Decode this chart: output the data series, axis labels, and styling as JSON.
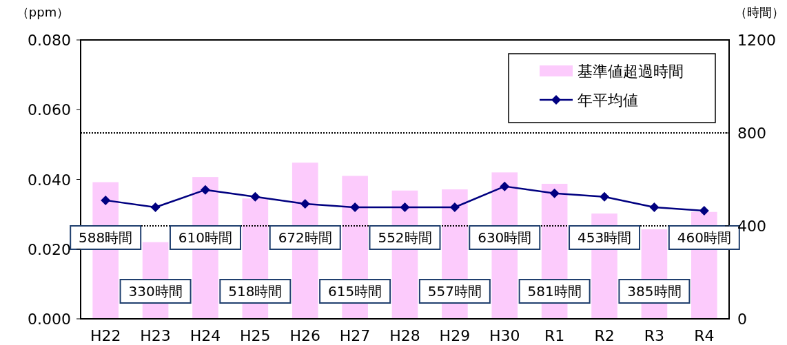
{
  "chart_data": {
    "type": "bar",
    "ylabel": "（ppm）",
    "y2label": "（時間）",
    "categories": [
      "H22",
      "H23",
      "H24",
      "H25",
      "H26",
      "H27",
      "H28",
      "H29",
      "H30",
      "R1",
      "R2",
      "R3",
      "R4"
    ],
    "series": [
      {
        "name": "基準値超過時間",
        "axis": "y2",
        "color": "#fccbfc",
        "values": [
          588,
          330,
          610,
          518,
          672,
          615,
          552,
          557,
          630,
          581,
          453,
          385,
          460
        ],
        "value_labels": [
          "588時間",
          "330時間",
          "610時間",
          "518時間",
          "672時間",
          "615時間",
          "552時間",
          "557時間",
          "630時間",
          "581時間",
          "453時間",
          "385時間",
          "460時間"
        ]
      },
      {
        "name": "年平均値",
        "type": "line",
        "color": "#000080",
        "marker": "diamond",
        "values": [
          0.034,
          0.032,
          0.037,
          0.035,
          0.033,
          0.032,
          0.032,
          0.032,
          0.038,
          0.036,
          0.035,
          0.032,
          0.031
        ]
      }
    ],
    "ylim": [
      0,
      0.08
    ],
    "yticks": [
      {
        "value": 0,
        "label": "0.000"
      },
      {
        "value": 0.02,
        "label": "0.020"
      },
      {
        "value": 0.04,
        "label": "0.040"
      },
      {
        "value": 0.06,
        "label": "0.060"
      },
      {
        "value": 0.08,
        "label": "0.080"
      }
    ],
    "y2lim": [
      0,
      1200
    ],
    "y2ticks": [
      0,
      400,
      800,
      1200
    ],
    "ref_lines": [
      {
        "axis": "y2",
        "value": 800,
        "line_style": "dotted"
      },
      {
        "axis": "y2",
        "value": 400,
        "line_style": "dotted"
      }
    ],
    "legend": "top right"
  }
}
